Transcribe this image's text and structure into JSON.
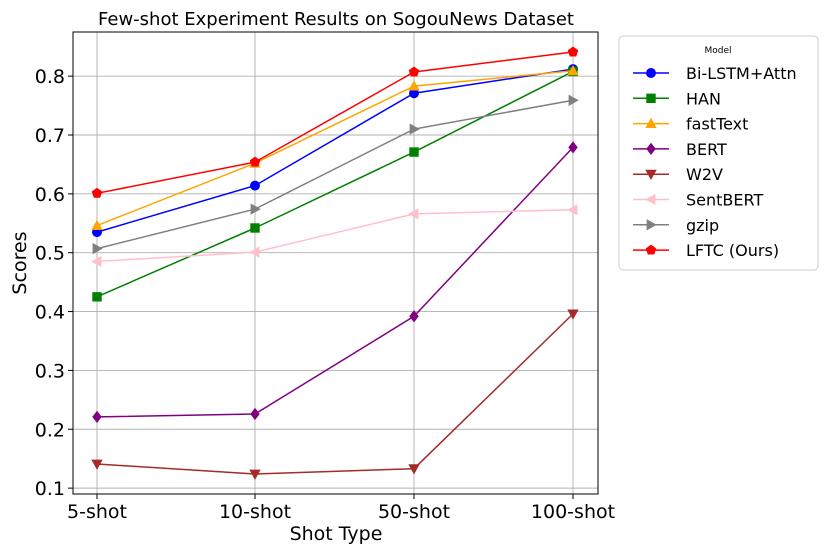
{
  "chart_data": {
    "type": "line",
    "title": "Few-shot Experiment Results on SogouNews Dataset",
    "xlabel": "Shot Type",
    "ylabel": "Scores",
    "categories": [
      "5-shot",
      "10-shot",
      "50-shot",
      "100-shot"
    ],
    "ylim": [
      0.09,
      0.875
    ],
    "yticks": [
      0.1,
      0.2,
      0.3,
      0.4,
      0.5,
      0.6,
      0.7,
      0.8
    ],
    "ytick_labels": [
      "0.1",
      "0.2",
      "0.3",
      "0.4",
      "0.5",
      "0.6",
      "0.7",
      "0.8"
    ],
    "grid": true,
    "legend": {
      "title": "Model",
      "position": "outside-top-right"
    },
    "series": [
      {
        "name": "Bi-LSTM+Attn",
        "color": "#0000ff",
        "marker": "circle",
        "values": [
          0.535,
          0.614,
          0.771,
          0.812
        ]
      },
      {
        "name": "HAN",
        "color": "#008000",
        "marker": "square",
        "values": [
          0.425,
          0.542,
          0.671,
          0.808
        ]
      },
      {
        "name": "fastText",
        "color": "#ffa500",
        "marker": "triangle-up",
        "values": [
          0.546,
          0.652,
          0.783,
          0.809
        ]
      },
      {
        "name": "BERT",
        "color": "#800080",
        "marker": "diamond",
        "values": [
          0.221,
          0.226,
          0.392,
          0.679
        ]
      },
      {
        "name": "W2V",
        "color": "#a52a2a",
        "marker": "triangle-down",
        "values": [
          0.141,
          0.124,
          0.133,
          0.396
        ]
      },
      {
        "name": "SentBERT",
        "color": "#ffc0cb",
        "marker": "triangle-left",
        "values": [
          0.485,
          0.501,
          0.566,
          0.573
        ]
      },
      {
        "name": "gzip",
        "color": "#808080",
        "marker": "triangle-right",
        "values": [
          0.507,
          0.574,
          0.71,
          0.759
        ]
      },
      {
        "name": "LFTC (Ours)",
        "color": "#ff0000",
        "marker": "pentagon",
        "values": [
          0.601,
          0.654,
          0.807,
          0.841
        ]
      }
    ]
  }
}
